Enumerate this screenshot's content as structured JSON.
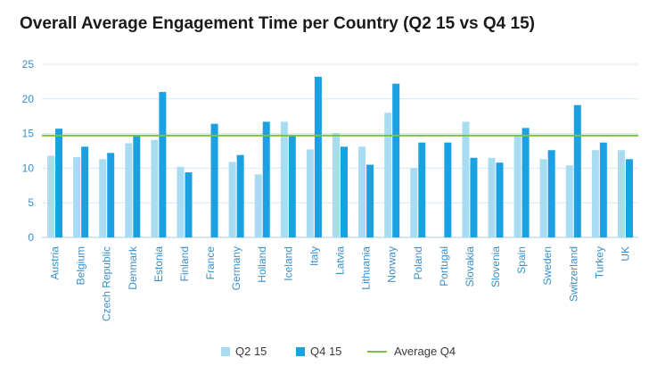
{
  "chart_data": {
    "type": "bar",
    "title": "Overall Average Engagement Time per Country (Q2 15 vs Q4 15)",
    "categories": [
      "Austria",
      "Belgium",
      "Czech Republic",
      "Denmark",
      "Estonia",
      "Finland",
      "France",
      "Germany",
      "Holland",
      "Iceland",
      "Italy",
      "Latvia",
      "Lithuania",
      "Norway",
      "Poland",
      "Portugal",
      "Slovakia",
      "Slovenia",
      "Spain",
      "Sweden",
      "Switzerland",
      "Turkey",
      "UK"
    ],
    "series": [
      {
        "name": "Q2 15",
        "color": "#a8dcf3",
        "values": [
          11.8,
          11.6,
          11.3,
          13.6,
          14.1,
          10.2,
          null,
          10.9,
          9.1,
          16.7,
          12.7,
          15.1,
          13.1,
          18.0,
          10.0,
          null,
          16.7,
          11.5,
          14.8,
          11.3,
          10.4,
          12.6,
          12.6
        ]
      },
      {
        "name": "Q4 15",
        "color": "#1ba1e2",
        "values": [
          15.7,
          13.1,
          12.2,
          14.7,
          21.0,
          9.4,
          16.4,
          11.9,
          16.7,
          14.7,
          23.2,
          13.1,
          10.5,
          22.2,
          13.7,
          13.7,
          11.5,
          10.8,
          15.8,
          12.6,
          19.1,
          13.7,
          11.3
        ]
      }
    ],
    "reference_line": {
      "name": "Average Q4",
      "value": 14.7,
      "color": "#7dc242"
    },
    "ylim": [
      0,
      25
    ],
    "yticks": [
      "0",
      "5",
      "10",
      "15",
      "20",
      "25"
    ],
    "grid": true,
    "legend": "bottom"
  }
}
